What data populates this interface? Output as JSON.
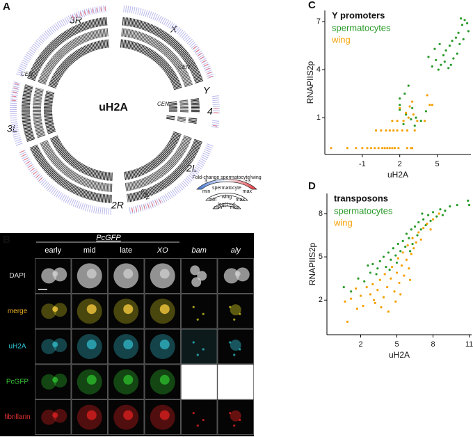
{
  "panel_a": {
    "label": "A",
    "center_label": "uH2A",
    "chromosomes": [
      "3R",
      "X",
      "Y",
      "4",
      "2L",
      "2R",
      "3L"
    ],
    "centromere_label": "CEN",
    "legend": {
      "scale_min": "3",
      "scale_title": "Fold-change spermatocyte/wing",
      "scale_max": "+3",
      "tracks": [
        [
          "min",
          "spermatocyte",
          "max"
        ],
        [
          "min",
          "wing",
          "max"
        ],
        [
          "min",
          "log(1+x)",
          "max"
        ]
      ]
    }
  },
  "panel_b": {
    "label": "B",
    "group_label": "PcGFP",
    "columns": [
      "early",
      "mid",
      "late",
      "XO",
      "bam",
      "aly"
    ],
    "rows": [
      "DAPI",
      "merge",
      "uH2A",
      "PcGFP",
      "fibrillarin"
    ]
  },
  "chart_data": [
    {
      "type": "scatter",
      "panel": "C",
      "legend_title": "Y promoters",
      "x_label": "uH2A",
      "y_label": "RNAPIIS2p",
      "xlim": [
        -4,
        7.7
      ],
      "ylim": [
        -1.3,
        7.7
      ],
      "xticks": [
        -1,
        2,
        5
      ],
      "yticks": [
        1,
        4,
        7
      ],
      "grid": false,
      "series": [
        {
          "name": "spermatocytes",
          "color": "#2a9a2a",
          "x": [
            2,
            2,
            2,
            2.4,
            2.7,
            2.5,
            3,
            3.3,
            3.7,
            3.2,
            2.9,
            4.1,
            2.3,
            4.3,
            4.6,
            4.9,
            5.1,
            5.3,
            5.5,
            5.7,
            5.9,
            6.0,
            6.2,
            6.3,
            6.5,
            6.7,
            6.8,
            7.0,
            7.2,
            7.4,
            7.5,
            5.2,
            4.8,
            6.6,
            7.1,
            5.6,
            6.1,
            6.9
          ],
          "values": [
            1.5,
            1.8,
            2.2,
            2.5,
            3.0,
            1.2,
            1.6,
            1.0,
            0.8,
            0.5,
            0.9,
            1.4,
            0.6,
            4.8,
            4.2,
            4.6,
            4.0,
            4.3,
            4.9,
            5.2,
            4.1,
            5.5,
            5.8,
            4.7,
            6.0,
            6.3,
            5.6,
            6.8,
            7.1,
            6.9,
            6.4,
            5.6,
            5.3,
            5.0,
            5.9,
            4.5,
            4.3,
            7.2
          ]
        },
        {
          "name": "wing",
          "color": "#f5a000",
          "x": [
            -3.5,
            -2.2,
            -1.5,
            -1.0,
            -0.6,
            -0.3,
            0,
            0.3,
            0.6,
            0.8,
            1.0,
            1.2,
            1.4,
            1.6,
            1.9,
            2.6,
            2.9,
            3.0,
            0.1,
            0.5,
            0.9,
            1.2,
            1.5,
            1.8,
            2.2,
            2.6,
            3.2,
            1.4,
            1.8,
            2.3,
            2.7,
            3.1,
            2.5,
            2.0,
            3.0,
            4.2,
            4.4,
            4.6,
            2.8,
            3.4,
            4.0
          ],
          "values": [
            -0.9,
            -0.9,
            -0.9,
            -0.9,
            -0.9,
            -0.9,
            -0.9,
            -0.9,
            -0.9,
            -0.9,
            -0.9,
            -0.9,
            -0.9,
            -0.9,
            -0.9,
            -0.9,
            -0.9,
            -0.9,
            0.2,
            0.2,
            0.2,
            0.2,
            0.2,
            0.2,
            0.2,
            0.2,
            0.2,
            0.8,
            0.8,
            0.8,
            1.0,
            1.2,
            1.3,
            1.6,
            2.0,
            2.4,
            1.8,
            1.8,
            1.7,
            0.8,
            0.8
          ]
        }
      ]
    },
    {
      "type": "scatter",
      "panel": "D",
      "legend_title": "transposons",
      "x_label": "uH2A",
      "y_label": "RNAPIIS2p",
      "xlim": [
        -0.8,
        11.2
      ],
      "ylim": [
        -0.4,
        9.4
      ],
      "xticks": [
        2,
        5,
        8,
        11
      ],
      "yticks": [
        2,
        5,
        8
      ],
      "grid": false,
      "series": [
        {
          "name": "spermatocytes",
          "color": "#2a9a2a",
          "x": [
            0.6,
            1.2,
            1.8,
            2.3,
            2.8,
            3.0,
            3.3,
            3.6,
            3.9,
            4.1,
            4.3,
            4.5,
            4.7,
            4.9,
            5.1,
            5.3,
            5.5,
            5.7,
            5.8,
            6.0,
            6.2,
            6.3,
            6.5,
            6.7,
            6.8,
            7.0,
            7.2,
            7.4,
            7.6,
            7.8,
            8.0,
            8.3,
            8.6,
            9.0,
            9.4,
            10.0,
            10.9,
            11.0,
            5.0,
            4.4,
            6.1,
            3.4,
            2.6,
            7.1,
            8.8
          ],
          "values": [
            2.9,
            2.6,
            3.5,
            3.3,
            3.9,
            4.5,
            3.8,
            4.7,
            5.0,
            4.3,
            5.3,
            4.8,
            5.6,
            5.1,
            5.9,
            5.4,
            6.1,
            5.7,
            6.6,
            6.3,
            6.9,
            5.9,
            7.1,
            6.5,
            7.4,
            6.9,
            7.6,
            7.2,
            7.9,
            7.5,
            8.1,
            7.8,
            8.3,
            8.2,
            8.5,
            8.6,
            8.9,
            8.6,
            4.6,
            4.1,
            5.4,
            4.2,
            4.4,
            8.0,
            7.9
          ]
        },
        {
          "name": "wing",
          "color": "#f5a000",
          "x": [
            0.9,
            0.7,
            1.2,
            1.6,
            2.0,
            2.2,
            2.5,
            2.8,
            3.0,
            3.2,
            3.4,
            3.6,
            3.7,
            3.9,
            4.0,
            4.2,
            4.3,
            4.5,
            4.6,
            4.8,
            5.0,
            5.1,
            5.2,
            5.4,
            5.5,
            5.6,
            5.8,
            5.9,
            6.0,
            6.2,
            6.3,
            6.4,
            6.6,
            6.8,
            7.0,
            7.2,
            7.5,
            7.8,
            8.0,
            8.5,
            4.9,
            5.3,
            6.1,
            3.1,
            1.7
          ],
          "values": [
            0.5,
            1.9,
            2.1,
            2.8,
            2.3,
            1.6,
            2.9,
            2.4,
            3.1,
            1.8,
            2.7,
            3.4,
            1.5,
            2.2,
            3.8,
            2.9,
            1.2,
            3.5,
            4.3,
            2.6,
            3.9,
            4.9,
            3.2,
            4.4,
            5.3,
            3.7,
            4.8,
            5.8,
            4.2,
            5.2,
            6.3,
            5.6,
            6.0,
            6.7,
            6.2,
            7.0,
            7.3,
            6.9,
            7.6,
            8.0,
            1.9,
            2.4,
            3.4,
            2.0,
            1.4
          ]
        }
      ]
    }
  ]
}
